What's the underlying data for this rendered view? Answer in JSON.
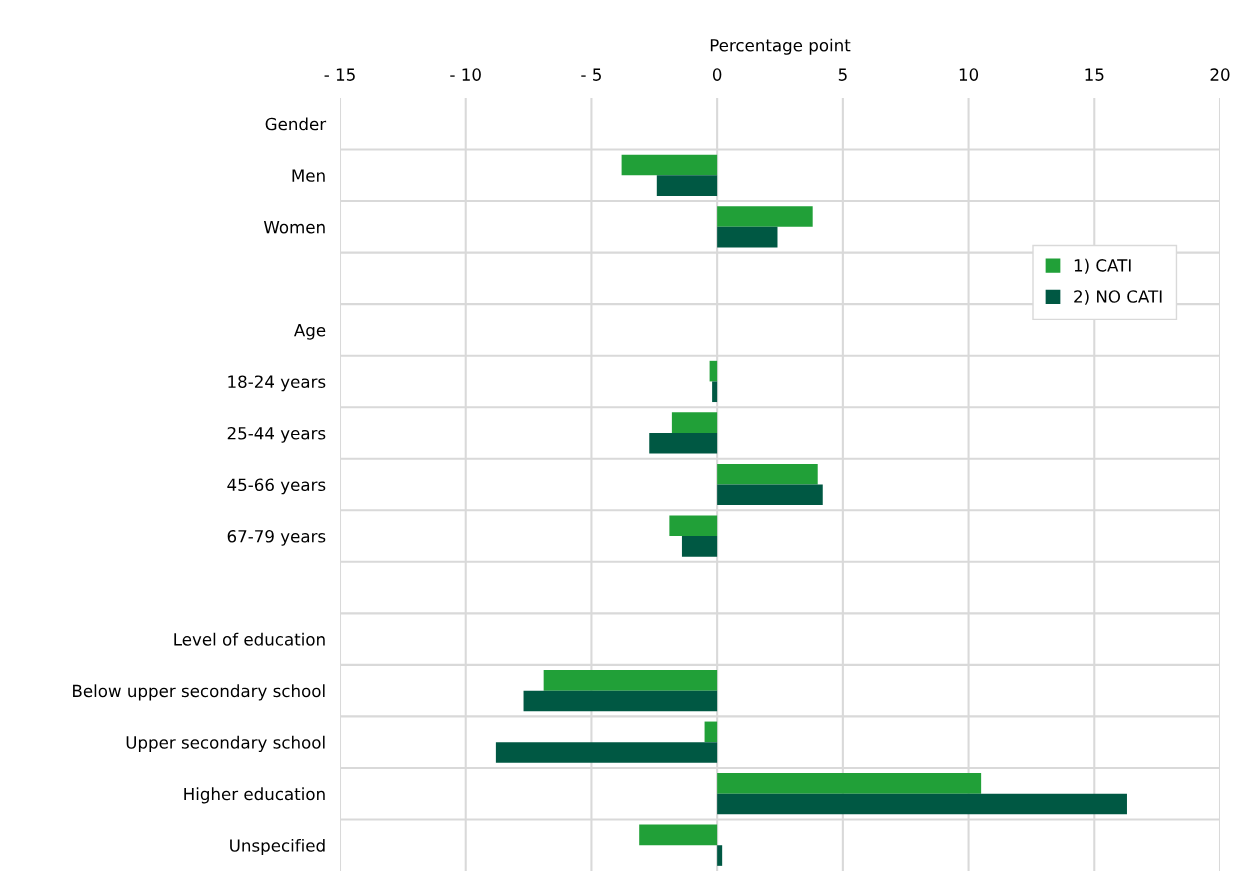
{
  "chart_data": {
    "type": "bar",
    "orientation": "horizontal",
    "xlabel": "Percentage point",
    "categories": [
      "Gender",
      "Men",
      "Women",
      null,
      "Age",
      "18-24 years",
      "25-44 years",
      "45-66 years",
      "67-79 years",
      null,
      "Level of education",
      "Below upper secondary school",
      "Upper secondary school",
      "Higher education",
      "Unspecified"
    ],
    "series": [
      {
        "name": "1) CATI",
        "color": "#21a038",
        "values": [
          null,
          -3.8,
          3.8,
          null,
          null,
          -0.3,
          -1.8,
          4.0,
          -1.9,
          null,
          null,
          -6.9,
          -0.5,
          10.5,
          -3.1
        ]
      },
      {
        "name": "2) NO CATI",
        "color": "#005843",
        "values": [
          null,
          -2.4,
          2.4,
          null,
          null,
          -0.2,
          -2.7,
          4.2,
          -1.4,
          null,
          null,
          -7.7,
          -8.8,
          16.3,
          0.2
        ]
      }
    ],
    "xlim": [
      -15,
      20
    ],
    "xticks": [
      {
        "value": -15,
        "label": "- 15"
      },
      {
        "value": -10,
        "label": "- 10"
      },
      {
        "value": -5,
        "label": "- 5"
      },
      0,
      5,
      10,
      15,
      20
    ],
    "grid": true,
    "legend": "top right"
  }
}
